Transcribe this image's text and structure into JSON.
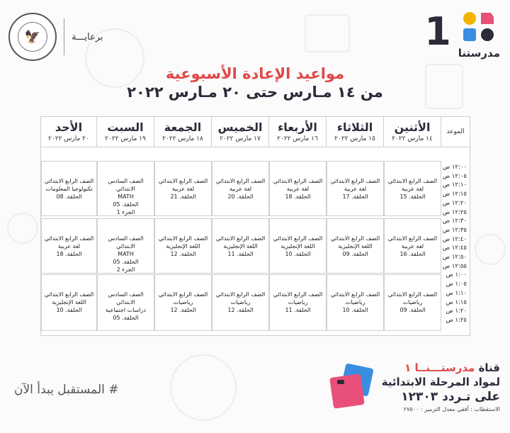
{
  "header": {
    "brand_number": "1",
    "brand_name": "مدرستنا",
    "sponsor": "برعايـــة",
    "title": "مواعيد الإعادة الأسبوعية",
    "subtitle": "من ١٤ مـارس حتى ٢٠ مـارس ٢٠٢٢"
  },
  "table": {
    "time_header": "الموعد",
    "days": [
      {
        "name": "الأثنين",
        "date": "١٤ مارس ٢٠٢٢"
      },
      {
        "name": "الثلاثاء",
        "date": "١٥ مارس ٢٠٢٢"
      },
      {
        "name": "الأربعاء",
        "date": "١٦ مارس ٢٠٢٢"
      },
      {
        "name": "الخميس",
        "date": "١٧ مارس ٢٠٢٢"
      },
      {
        "name": "الجمعة",
        "date": "١٨ مارس ٢٠٢٢"
      },
      {
        "name": "السبت",
        "date": "١٩ مارس ٢٠٢٢"
      },
      {
        "name": "الأحد",
        "date": "٢٠ مارس ٢٠٢٢"
      }
    ],
    "times": [
      "١٢:٠٠ ص",
      "١٢:٠٥ ص",
      "١٢:١٠ ص",
      "١٢:١٥ ص",
      "١٢:٢٠ ص",
      "١٢:٢٥ ص",
      "١٢:٣٠ ص",
      "١٢:٣٥ ص",
      "١٢:٤٠ ص",
      "١٢:٤٥ ص",
      "١٢:٥٠ ص",
      "١٢:٥٥ ص",
      "١:٠٠ ص",
      "١:٠٥ ص",
      "١:١٠ ص",
      "١:١٥ ص",
      "١:٢٠ ص",
      "١:٢٥ ص"
    ],
    "rows": [
      [
        [
          "الصف الرابع الابتدائي",
          "لغة عربية",
          "الحلقة. 15"
        ],
        [
          "الصف الرابع الابتدائي",
          "لغة عربية",
          "الحلقة. 17"
        ],
        [
          "الصف الرابع الابتدائي",
          "لغة عربية",
          "الحلقة. 18"
        ],
        [
          "الصف الرابع الابتدائي",
          "لغة عربية",
          "الحلقة. 20"
        ],
        [
          "الصف الرابع الابتدائي",
          "لغة عربية",
          "الحلقة. 21"
        ],
        [
          "الصف السادس الابتدائي",
          "MATH",
          "الحلقة. 05",
          "الجزء 1"
        ],
        [
          "الصف الرابع الابتدائي",
          "تكنولوجيا المعلومات",
          "الحلقة. 08"
        ]
      ],
      [
        [
          "الصف الرابع الابتدائي",
          "لغة عربية",
          "الحلقة. 16"
        ],
        [
          "الصف الرابع الابتدائي",
          "اللغة الإنجليزية",
          "الحلقة. 09"
        ],
        [
          "الصف الرابع الابتدائي",
          "اللغة الإنجليزية",
          "الحلقة. 10"
        ],
        [
          "الصف الرابع الابتدائي",
          "اللغة الإنجليزية",
          "الحلقة. 11"
        ],
        [
          "الصف الرابع الابتدائي",
          "اللغة الإنجليزية",
          "الحلقة. 12"
        ],
        [
          "الصف السادس الابتدائي",
          "MATH",
          "الحلقة. 05",
          "الجزء 2"
        ],
        [
          "الصف الرابع الابتدائي",
          "لغة عربية",
          "الحلقة. 18"
        ]
      ],
      [
        [
          "الصف الرابع الابتدائي",
          "رياضيات",
          "الحلقة. 09"
        ],
        [
          "الصف الرابع الابتدائي",
          "رياضيات",
          "الحلقة. 10"
        ],
        [
          "الصف الرابع الابتدائي",
          "رياضيات",
          "الحلقة. 11"
        ],
        [
          "الصف الرابع الابتدائي",
          "رياضيات",
          "الحلقة. 12"
        ],
        [
          "الصف الرابع الابتدائي",
          "رياضيات",
          "الحلقة. 12"
        ],
        [
          "الصف السادس الابتدائي",
          "دراسات اجتماعية",
          "الحلقة. 05"
        ],
        [
          "الصف الرابع الابتدائي",
          "اللغة الإنجليزية",
          "الحلقة. 10"
        ]
      ]
    ]
  },
  "footer": {
    "tagline": "# المستقبل يبدأ الآن",
    "channel_prefix": "قناة",
    "channel_name": "مدرستـــنــا ١",
    "line2": "لمواد المرحلة الابتدائية",
    "line3": "على تـردد ١٢٣٠٣",
    "reception": "الاستقطاب : أفقي معدل الترميز : ٢٧٥٠٠"
  },
  "colors": {
    "accent_red": "#e04848",
    "dark_text": "#2b2b3a",
    "logo_blue": "#3a8ee0",
    "logo_yellow": "#f5b301",
    "logo_pink": "#e8507a"
  }
}
